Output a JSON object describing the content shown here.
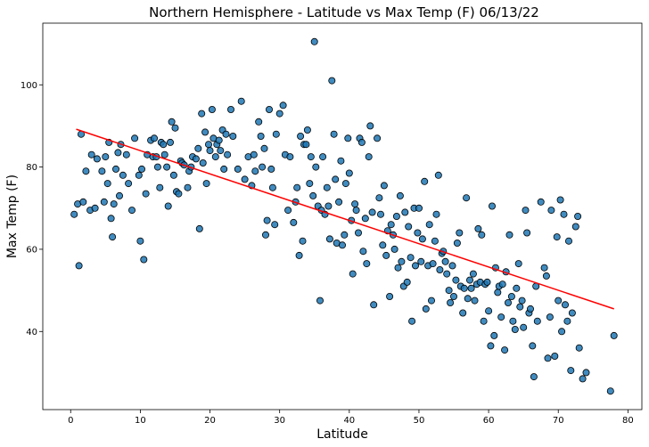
{
  "chart_data": {
    "type": "scatter",
    "title": "Northern Hemisphere - Latitude vs Max Temp (F) 06/13/22",
    "xlabel": "Latitude",
    "ylabel": "Max Temp (F)",
    "xlim": [
      -4,
      82
    ],
    "ylim": [
      21,
      115
    ],
    "xticks": [
      0,
      10,
      20,
      30,
      40,
      50,
      60,
      70,
      80
    ],
    "yticks": [
      40,
      60,
      80,
      100
    ],
    "grid": false,
    "colors": {
      "points": "#1f77b4",
      "point_edge": "#000000",
      "regression": "#ff0000"
    },
    "regression": {
      "x": [
        0.8,
        78
      ],
      "y": [
        89.2,
        45.5
      ]
    },
    "series": [
      {
        "points": [
          [
            0.5,
            68.5
          ],
          [
            1.0,
            71.0
          ],
          [
            1.2,
            56.0
          ],
          [
            1.5,
            88.0
          ],
          [
            1.8,
            71.5
          ],
          [
            2.2,
            79.0
          ],
          [
            2.8,
            69.5
          ],
          [
            3.0,
            83.0
          ],
          [
            3.5,
            70.0
          ],
          [
            3.8,
            82.0
          ],
          [
            4.5,
            79.0
          ],
          [
            4.8,
            71.5
          ],
          [
            5.0,
            82.5
          ],
          [
            5.3,
            76.0
          ],
          [
            5.5,
            86.0
          ],
          [
            5.8,
            67.5
          ],
          [
            6.0,
            63.0
          ],
          [
            6.2,
            71.0
          ],
          [
            6.5,
            79.5
          ],
          [
            6.8,
            83.5
          ],
          [
            7.0,
            73.0
          ],
          [
            7.2,
            85.5
          ],
          [
            7.5,
            78.0
          ],
          [
            8.0,
            83.0
          ],
          [
            8.3,
            76.0
          ],
          [
            8.8,
            69.5
          ],
          [
            9.2,
            87.0
          ],
          [
            9.8,
            78.0
          ],
          [
            10.0,
            62.0
          ],
          [
            10.2,
            79.5
          ],
          [
            10.5,
            57.5
          ],
          [
            10.8,
            73.5
          ],
          [
            11.0,
            83.0
          ],
          [
            11.5,
            86.5
          ],
          [
            11.8,
            82.5
          ],
          [
            12.0,
            87.0
          ],
          [
            12.3,
            82.5
          ],
          [
            12.5,
            80.0
          ],
          [
            12.8,
            75.0
          ],
          [
            13.0,
            86.0
          ],
          [
            13.3,
            85.5
          ],
          [
            13.5,
            83.0
          ],
          [
            13.8,
            80.0
          ],
          [
            14.0,
            70.5
          ],
          [
            14.3,
            86.0
          ],
          [
            14.5,
            91.0
          ],
          [
            14.8,
            78.0
          ],
          [
            15.0,
            89.5
          ],
          [
            15.2,
            74.0
          ],
          [
            15.5,
            73.5
          ],
          [
            15.8,
            81.5
          ],
          [
            16.0,
            81.0
          ],
          [
            16.3,
            80.5
          ],
          [
            16.8,
            75.0
          ],
          [
            17.0,
            79.0
          ],
          [
            17.3,
            80.0
          ],
          [
            17.5,
            82.5
          ],
          [
            18.0,
            82.0
          ],
          [
            18.3,
            84.5
          ],
          [
            18.5,
            65.0
          ],
          [
            18.8,
            93.0
          ],
          [
            19.0,
            81.0
          ],
          [
            19.3,
            88.5
          ],
          [
            19.5,
            76.0
          ],
          [
            19.8,
            85.5
          ],
          [
            20.0,
            84.0
          ],
          [
            20.3,
            94.0
          ],
          [
            20.5,
            87.0
          ],
          [
            20.8,
            82.5
          ],
          [
            21.0,
            85.5
          ],
          [
            21.3,
            86.5
          ],
          [
            21.5,
            84.0
          ],
          [
            21.8,
            89.0
          ],
          [
            22.0,
            79.5
          ],
          [
            22.3,
            88.0
          ],
          [
            22.5,
            83.0
          ],
          [
            23.0,
            94.0
          ],
          [
            23.3,
            87.5
          ],
          [
            24.0,
            79.5
          ],
          [
            24.5,
            96.0
          ],
          [
            25.0,
            77.0
          ],
          [
            25.5,
            82.5
          ],
          [
            26.0,
            75.5
          ],
          [
            26.3,
            83.0
          ],
          [
            26.5,
            79.0
          ],
          [
            27.0,
            91.0
          ],
          [
            27.3,
            87.5
          ],
          [
            27.5,
            80.0
          ],
          [
            27.8,
            84.5
          ],
          [
            28.0,
            63.5
          ],
          [
            28.2,
            67.0
          ],
          [
            28.5,
            94.0
          ],
          [
            28.8,
            79.5
          ],
          [
            29.0,
            75.0
          ],
          [
            29.3,
            66.0
          ],
          [
            29.5,
            88.0
          ],
          [
            30.0,
            93.0
          ],
          [
            30.5,
            95.0
          ],
          [
            30.8,
            83.0
          ],
          [
            31.2,
            69.5
          ],
          [
            31.5,
            82.5
          ],
          [
            32.0,
            66.5
          ],
          [
            32.3,
            71.5
          ],
          [
            32.5,
            75.0
          ],
          [
            32.8,
            58.5
          ],
          [
            33.0,
            87.5
          ],
          [
            33.3,
            62.0
          ],
          [
            33.5,
            85.5
          ],
          [
            33.8,
            85.5
          ],
          [
            34.0,
            89.0
          ],
          [
            34.3,
            76.0
          ],
          [
            34.5,
            82.5
          ],
          [
            34.8,
            73.0
          ],
          [
            35.0,
            110.5
          ],
          [
            35.2,
            80.0
          ],
          [
            35.5,
            70.5
          ],
          [
            35.8,
            47.5
          ],
          [
            36.0,
            69.5
          ],
          [
            36.2,
            82.5
          ],
          [
            36.5,
            68.5
          ],
          [
            36.8,
            75.0
          ],
          [
            37.0,
            70.5
          ],
          [
            37.2,
            62.5
          ],
          [
            37.5,
            101.0
          ],
          [
            37.8,
            88.0
          ],
          [
            38.0,
            77.0
          ],
          [
            38.2,
            61.5
          ],
          [
            38.5,
            71.5
          ],
          [
            38.8,
            81.5
          ],
          [
            39.0,
            61.0
          ],
          [
            39.3,
            63.5
          ],
          [
            39.5,
            76.0
          ],
          [
            39.8,
            87.0
          ],
          [
            40.0,
            78.5
          ],
          [
            40.3,
            67.0
          ],
          [
            40.5,
            54.0
          ],
          [
            40.8,
            71.0
          ],
          [
            41.0,
            69.5
          ],
          [
            41.3,
            64.0
          ],
          [
            41.5,
            87.0
          ],
          [
            41.8,
            86.0
          ],
          [
            42.0,
            59.5
          ],
          [
            42.3,
            67.5
          ],
          [
            42.5,
            56.5
          ],
          [
            42.8,
            82.5
          ],
          [
            43.0,
            90.0
          ],
          [
            43.3,
            69.0
          ],
          [
            43.5,
            46.5
          ],
          [
            44.0,
            87.0
          ],
          [
            44.3,
            72.5
          ],
          [
            44.5,
            68.5
          ],
          [
            44.8,
            61.0
          ],
          [
            45.0,
            75.5
          ],
          [
            45.3,
            58.5
          ],
          [
            45.5,
            64.5
          ],
          [
            45.8,
            48.5
          ],
          [
            46.0,
            66.0
          ],
          [
            46.3,
            63.5
          ],
          [
            46.5,
            60.0
          ],
          [
            46.8,
            68.0
          ],
          [
            47.0,
            55.5
          ],
          [
            47.3,
            73.0
          ],
          [
            47.5,
            57.0
          ],
          [
            47.8,
            51.0
          ],
          [
            48.0,
            69.0
          ],
          [
            48.3,
            52.0
          ],
          [
            48.5,
            65.5
          ],
          [
            48.8,
            58.0
          ],
          [
            49.0,
            42.5
          ],
          [
            49.3,
            70.0
          ],
          [
            49.5,
            56.0
          ],
          [
            49.8,
            64.0
          ],
          [
            50.0,
            70.0
          ],
          [
            50.3,
            57.0
          ],
          [
            50.5,
            62.5
          ],
          [
            50.8,
            76.5
          ],
          [
            51.0,
            45.5
          ],
          [
            51.3,
            56.0
          ],
          [
            51.5,
            66.0
          ],
          [
            51.8,
            47.5
          ],
          [
            52.0,
            56.5
          ],
          [
            52.3,
            62.0
          ],
          [
            52.5,
            68.5
          ],
          [
            52.8,
            78.0
          ],
          [
            53.0,
            55.0
          ],
          [
            53.3,
            59.0
          ],
          [
            53.5,
            59.5
          ],
          [
            53.8,
            57.0
          ],
          [
            54.0,
            54.0
          ],
          [
            54.3,
            50.0
          ],
          [
            54.5,
            47.0
          ],
          [
            54.8,
            56.0
          ],
          [
            55.0,
            48.5
          ],
          [
            55.3,
            52.5
          ],
          [
            55.5,
            61.5
          ],
          [
            55.8,
            64.0
          ],
          [
            56.0,
            51.0
          ],
          [
            56.3,
            44.5
          ],
          [
            56.5,
            50.5
          ],
          [
            56.8,
            72.5
          ],
          [
            57.0,
            48.0
          ],
          [
            57.3,
            52.5
          ],
          [
            57.5,
            50.5
          ],
          [
            57.8,
            54.0
          ],
          [
            58.0,
            47.5
          ],
          [
            58.3,
            51.5
          ],
          [
            58.5,
            65.0
          ],
          [
            58.8,
            52.0
          ],
          [
            59.0,
            63.5
          ],
          [
            59.3,
            42.5
          ],
          [
            59.5,
            51.5
          ],
          [
            59.8,
            52.0
          ],
          [
            60.0,
            45.0
          ],
          [
            60.3,
            36.5
          ],
          [
            60.5,
            70.5
          ],
          [
            60.8,
            39.0
          ],
          [
            61.0,
            55.5
          ],
          [
            61.3,
            49.5
          ],
          [
            61.5,
            51.0
          ],
          [
            61.8,
            43.5
          ],
          [
            62.0,
            51.5
          ],
          [
            62.3,
            35.5
          ],
          [
            62.5,
            54.5
          ],
          [
            62.8,
            47.0
          ],
          [
            63.0,
            63.5
          ],
          [
            63.3,
            48.5
          ],
          [
            63.5,
            42.5
          ],
          [
            63.8,
            40.5
          ],
          [
            64.0,
            50.5
          ],
          [
            64.3,
            56.5
          ],
          [
            64.5,
            46.0
          ],
          [
            64.8,
            47.5
          ],
          [
            65.0,
            41.0
          ],
          [
            65.3,
            69.5
          ],
          [
            65.5,
            64.0
          ],
          [
            65.8,
            44.5
          ],
          [
            66.0,
            45.5
          ],
          [
            66.3,
            36.5
          ],
          [
            66.5,
            29.0
          ],
          [
            66.8,
            51.0
          ],
          [
            67.0,
            42.5
          ],
          [
            67.5,
            71.5
          ],
          [
            68.0,
            55.5
          ],
          [
            68.3,
            53.5
          ],
          [
            68.5,
            33.5
          ],
          [
            68.8,
            43.5
          ],
          [
            69.0,
            69.5
          ],
          [
            69.5,
            34.0
          ],
          [
            69.8,
            63.0
          ],
          [
            70.0,
            47.5
          ],
          [
            70.3,
            72.0
          ],
          [
            70.5,
            40.0
          ],
          [
            70.8,
            68.5
          ],
          [
            71.0,
            46.5
          ],
          [
            71.3,
            42.5
          ],
          [
            71.5,
            62.0
          ],
          [
            71.8,
            30.5
          ],
          [
            72.0,
            44.5
          ],
          [
            72.5,
            65.5
          ],
          [
            72.8,
            68.0
          ],
          [
            73.0,
            36.0
          ],
          [
            73.5,
            28.5
          ],
          [
            74.0,
            30.0
          ],
          [
            77.5,
            25.5
          ],
          [
            78.0,
            39.0
          ]
        ]
      }
    ]
  }
}
